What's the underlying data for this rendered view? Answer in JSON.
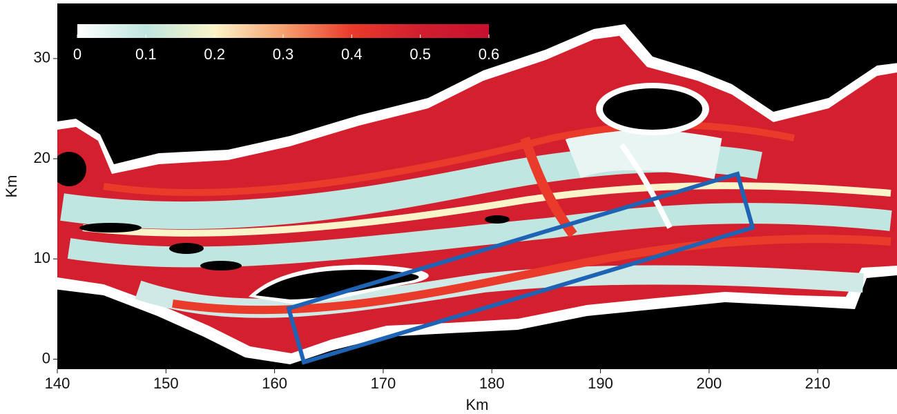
{
  "chart_data": {
    "type": "heatmap",
    "xlabel": "Km",
    "ylabel": "Km",
    "xlim": [
      140,
      217.3
    ],
    "ylim": [
      -1,
      35.5
    ],
    "xticks": [
      140,
      150,
      160,
      170,
      180,
      190,
      200,
      210
    ],
    "yticks": [
      0,
      10,
      20,
      30
    ],
    "colorbar": {
      "lim": [
        0,
        0.6
      ],
      "ticks": [
        0,
        0.1,
        0.2,
        0.3,
        0.4,
        0.5,
        0.6
      ],
      "colors": [
        "#ffffff",
        "#bfe6e0",
        "#fbf4c8",
        "#f7a070",
        "#ea3a2a",
        "#d01f2f",
        "#c8102e"
      ]
    }
  }
}
